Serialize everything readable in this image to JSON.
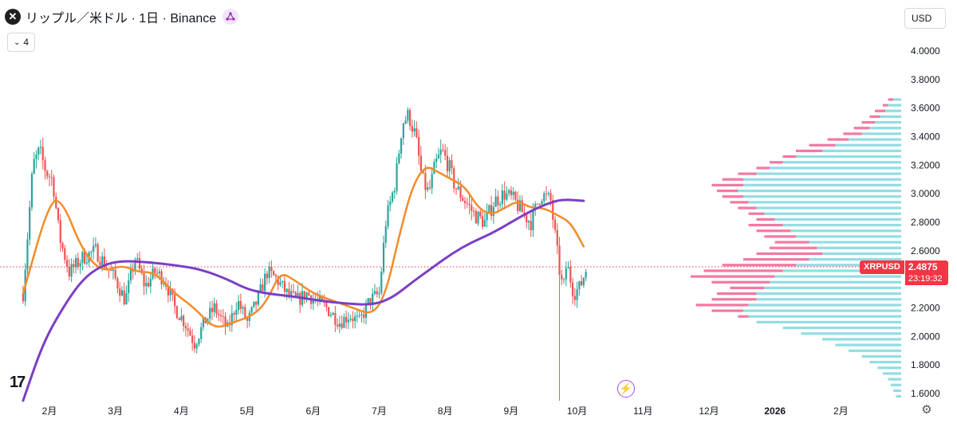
{
  "header": {
    "symbol_logo_char": "✕",
    "symbol_title": "リップル／米ドル · 1日 · Binance",
    "indicator_icon": "ai-sparkle-icon",
    "collapse_count": "4",
    "collapse_icon": "chevron-down-icon",
    "currency": "USD"
  },
  "price_badge": {
    "symbol": "XRPUSD",
    "price": "2.4875",
    "countdown": "23:19:32"
  },
  "colors": {
    "up": "#26a69a",
    "down": "#ef5350",
    "ma_short": "#f28c28",
    "ma_long": "#7b3fc4",
    "vp_up": "#7fd7de",
    "vp_down": "#f06292",
    "price_line": "#f23645",
    "badge": "#f23645"
  },
  "icons": {
    "tradingview_logo": "tradingview-logo-icon",
    "flash": "lightning-icon",
    "settings": "gear-icon"
  },
  "chart_data": {
    "type": "candlestick",
    "yaxis": {
      "ticks": [
        1.6,
        1.8,
        2.0,
        2.2,
        2.4,
        2.6,
        2.8,
        3.0,
        3.2,
        3.4,
        3.6,
        3.8,
        4.0
      ],
      "tick_labels": [
        "1.6000",
        "1.8000",
        "2.0000",
        "2.2000",
        "2.4000",
        "2.6000",
        "2.8000",
        "3.0000",
        "3.2000",
        "3.4000",
        "3.6000",
        "3.8000",
        "4.0000"
      ],
      "range": [
        1.55,
        4.05
      ]
    },
    "xaxis": {
      "labels": [
        {
          "label": "2月",
          "month": 1
        },
        {
          "label": "3月",
          "month": 2
        },
        {
          "label": "4月",
          "month": 3
        },
        {
          "label": "5月",
          "month": 4
        },
        {
          "label": "6月",
          "month": 5
        },
        {
          "label": "7月",
          "month": 6
        },
        {
          "label": "8月",
          "month": 7
        },
        {
          "label": "9月",
          "month": 8
        },
        {
          "label": "10月",
          "month": 9
        },
        {
          "label": "11月",
          "month": 10
        },
        {
          "label": "12月",
          "month": 11
        },
        {
          "label": "2026",
          "month": 12
        },
        {
          "label": "2月",
          "month": 13
        }
      ],
      "range_months": [
        0.6,
        14.3
      ]
    },
    "current_price": 2.4875,
    "price_path": [
      [
        0.6,
        2.3
      ],
      [
        0.75,
        3.2
      ],
      [
        0.85,
        3.3
      ],
      [
        0.95,
        3.15
      ],
      [
        1.05,
        3.1
      ],
      [
        1.15,
        2.7
      ],
      [
        1.3,
        2.45
      ],
      [
        1.5,
        2.55
      ],
      [
        1.7,
        2.6
      ],
      [
        1.85,
        2.5
      ],
      [
        2.0,
        2.4
      ],
      [
        2.15,
        2.25
      ],
      [
        2.3,
        2.55
      ],
      [
        2.45,
        2.35
      ],
      [
        2.6,
        2.45
      ],
      [
        2.75,
        2.4
      ],
      [
        2.9,
        2.2
      ],
      [
        3.05,
        2.1
      ],
      [
        3.2,
        1.95
      ],
      [
        3.35,
        2.1
      ],
      [
        3.5,
        2.2
      ],
      [
        3.7,
        2.05
      ],
      [
        3.85,
        2.25
      ],
      [
        4.0,
        2.1
      ],
      [
        4.15,
        2.25
      ],
      [
        4.3,
        2.45
      ],
      [
        4.45,
        2.4
      ],
      [
        4.6,
        2.3
      ],
      [
        4.75,
        2.25
      ],
      [
        4.9,
        2.3
      ],
      [
        5.05,
        2.25
      ],
      [
        5.2,
        2.2
      ],
      [
        5.4,
        2.1
      ],
      [
        5.55,
        2.15
      ],
      [
        5.7,
        2.1
      ],
      [
        5.85,
        2.25
      ],
      [
        6.0,
        2.3
      ],
      [
        6.1,
        2.8
      ],
      [
        6.25,
        3.1
      ],
      [
        6.35,
        3.5
      ],
      [
        6.45,
        3.55
      ],
      [
        6.55,
        3.4
      ],
      [
        6.65,
        3.1
      ],
      [
        6.75,
        3.0
      ],
      [
        6.85,
        3.2
      ],
      [
        6.95,
        3.3
      ],
      [
        7.05,
        3.2
      ],
      [
        7.15,
        3.05
      ],
      [
        7.3,
        2.95
      ],
      [
        7.45,
        2.85
      ],
      [
        7.6,
        2.8
      ],
      [
        7.75,
        2.95
      ],
      [
        7.9,
        3.0
      ],
      [
        8.05,
        2.95
      ],
      [
        8.2,
        2.85
      ],
      [
        8.3,
        2.8
      ],
      [
        8.45,
        3.0
      ],
      [
        8.6,
        2.95
      ],
      [
        8.75,
        2.4
      ],
      [
        8.85,
        2.5
      ],
      [
        8.95,
        2.3
      ],
      [
        9.05,
        2.35
      ],
      [
        9.15,
        2.49
      ]
    ],
    "series": [
      {
        "name": "",
        "points": [
          [
            0.6,
            2.3
          ],
          [
            1.0,
            2.95
          ],
          [
            1.2,
            2.95
          ],
          [
            1.5,
            2.6
          ],
          [
            1.8,
            2.45
          ],
          [
            2.1,
            2.5
          ],
          [
            2.35,
            2.45
          ],
          [
            2.6,
            2.45
          ],
          [
            2.9,
            2.3
          ],
          [
            3.2,
            2.2
          ],
          [
            3.5,
            2.05
          ],
          [
            3.8,
            2.1
          ],
          [
            4.1,
            2.15
          ],
          [
            4.3,
            2.25
          ],
          [
            4.5,
            2.45
          ],
          [
            4.7,
            2.4
          ],
          [
            5.0,
            2.3
          ],
          [
            5.3,
            2.25
          ],
          [
            5.6,
            2.2
          ],
          [
            5.9,
            2.15
          ],
          [
            6.1,
            2.3
          ],
          [
            6.3,
            2.7
          ],
          [
            6.5,
            3.05
          ],
          [
            6.7,
            3.2
          ],
          [
            6.9,
            3.15
          ],
          [
            7.1,
            3.1
          ],
          [
            7.3,
            3.05
          ],
          [
            7.5,
            2.9
          ],
          [
            7.7,
            2.85
          ],
          [
            7.9,
            2.9
          ],
          [
            8.1,
            2.95
          ],
          [
            8.3,
            2.9
          ],
          [
            8.5,
            2.9
          ],
          [
            8.7,
            2.85
          ],
          [
            8.9,
            2.8
          ],
          [
            9.1,
            2.63
          ]
        ]
      },
      {
        "name": "",
        "points": [
          [
            0.6,
            1.55
          ],
          [
            0.9,
            1.95
          ],
          [
            1.2,
            2.2
          ],
          [
            1.5,
            2.4
          ],
          [
            1.8,
            2.5
          ],
          [
            2.1,
            2.53
          ],
          [
            2.5,
            2.52
          ],
          [
            2.9,
            2.5
          ],
          [
            3.3,
            2.47
          ],
          [
            3.7,
            2.4
          ],
          [
            4.0,
            2.33
          ],
          [
            4.3,
            2.3
          ],
          [
            4.7,
            2.28
          ],
          [
            5.1,
            2.25
          ],
          [
            5.5,
            2.23
          ],
          [
            5.9,
            2.22
          ],
          [
            6.2,
            2.27
          ],
          [
            6.5,
            2.38
          ],
          [
            6.8,
            2.48
          ],
          [
            7.1,
            2.58
          ],
          [
            7.4,
            2.66
          ],
          [
            7.7,
            2.72
          ],
          [
            8.0,
            2.8
          ],
          [
            8.3,
            2.88
          ],
          [
            8.6,
            2.94
          ],
          [
            8.8,
            2.96
          ],
          [
            9.1,
            2.95
          ]
        ]
      }
    ],
    "volume_profile": [
      [
        3.66,
        0.05,
        0.03
      ],
      [
        3.62,
        0.07,
        0.05
      ],
      [
        3.58,
        0.1,
        0.06
      ],
      [
        3.54,
        0.12,
        0.08
      ],
      [
        3.5,
        0.15,
        0.1
      ],
      [
        3.46,
        0.18,
        0.12
      ],
      [
        3.42,
        0.22,
        0.15
      ],
      [
        3.38,
        0.28,
        0.2
      ],
      [
        3.34,
        0.35,
        0.25
      ],
      [
        3.3,
        0.4,
        0.3
      ],
      [
        3.26,
        0.45,
        0.4
      ],
      [
        3.22,
        0.5,
        0.45
      ],
      [
        3.18,
        0.55,
        0.5
      ],
      [
        3.14,
        0.62,
        0.55
      ],
      [
        3.1,
        0.68,
        0.6
      ],
      [
        3.06,
        0.72,
        0.6
      ],
      [
        3.02,
        0.7,
        0.62
      ],
      [
        2.98,
        0.68,
        0.6
      ],
      [
        2.94,
        0.65,
        0.58
      ],
      [
        2.9,
        0.62,
        0.55
      ],
      [
        2.86,
        0.58,
        0.52
      ],
      [
        2.82,
        0.55,
        0.48
      ],
      [
        2.78,
        0.58,
        0.45
      ],
      [
        2.74,
        0.55,
        0.42
      ],
      [
        2.7,
        0.52,
        0.4
      ],
      [
        2.66,
        0.48,
        0.35
      ],
      [
        2.62,
        0.5,
        0.32
      ],
      [
        2.58,
        0.55,
        0.3
      ],
      [
        2.54,
        0.6,
        0.35
      ],
      [
        2.5,
        0.68,
        0.4
      ],
      [
        2.46,
        0.75,
        0.45
      ],
      [
        2.42,
        0.8,
        0.48
      ],
      [
        2.38,
        0.72,
        0.5
      ],
      [
        2.34,
        0.65,
        0.52
      ],
      [
        2.3,
        0.7,
        0.55
      ],
      [
        2.26,
        0.72,
        0.55
      ],
      [
        2.22,
        0.78,
        0.58
      ],
      [
        2.18,
        0.72,
        0.6
      ],
      [
        2.14,
        0.62,
        0.58
      ],
      [
        2.1,
        0.52,
        0.55
      ],
      [
        2.06,
        0.4,
        0.45
      ],
      [
        2.02,
        0.32,
        0.38
      ],
      [
        1.98,
        0.25,
        0.3
      ],
      [
        1.94,
        0.2,
        0.25
      ],
      [
        1.9,
        0.15,
        0.2
      ],
      [
        1.86,
        0.12,
        0.15
      ],
      [
        1.82,
        0.1,
        0.12
      ],
      [
        1.78,
        0.08,
        0.09
      ],
      [
        1.74,
        0.06,
        0.07
      ],
      [
        1.7,
        0.04,
        0.05
      ],
      [
        1.66,
        0.03,
        0.04
      ],
      [
        1.62,
        0.02,
        0.03
      ],
      [
        1.58,
        0.02,
        0.02
      ]
    ]
  }
}
